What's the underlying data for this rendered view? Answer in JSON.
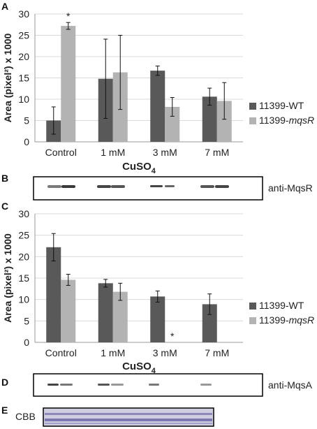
{
  "chart_data": [
    {
      "panel": "A",
      "type": "bar",
      "categories": [
        "Control",
        "1 mM",
        "3 mM",
        "7 mM"
      ],
      "series": [
        {
          "name": "11399-WT",
          "values": [
            5,
            14.8,
            16.7,
            10.6
          ],
          "errors": [
            3.2,
            9.3,
            1.1,
            2.0
          ],
          "color": "#595959"
        },
        {
          "name": "11399-",
          "name_suffix": "mqsR",
          "values": [
            27.2,
            16.3,
            8.2,
            9.6
          ],
          "errors": [
            0.8,
            8.7,
            2.2,
            4.3
          ],
          "color": "#b3b3b3"
        }
      ],
      "annotations": [
        {
          "category": 0,
          "series": 1,
          "text": "*"
        }
      ],
      "xlabel_main": "CuSO",
      "xlabel_sub": "4",
      "ylabel": "Area (pixel²) x 1000",
      "ylim": [
        0,
        30
      ],
      "yticks": [
        "0",
        "5",
        "10",
        "15",
        "20",
        "25",
        "30"
      ],
      "grid": true,
      "legend": "right"
    },
    {
      "panel": "C",
      "type": "bar",
      "categories": [
        "Control",
        "1 mM",
        "3 mM",
        "7 mM"
      ],
      "series": [
        {
          "name": "11399-WT",
          "values": [
            22.2,
            13.8,
            10.7,
            8.9
          ],
          "errors": [
            3.2,
            0.9,
            1.3,
            2.4
          ],
          "color": "#595959"
        },
        {
          "name": "11399-",
          "name_suffix": "mqsR",
          "values": [
            14.6,
            11.8,
            0,
            0
          ],
          "errors": [
            1.3,
            2.0,
            0,
            0
          ],
          "color": "#b3b3b3"
        }
      ],
      "annotations": [
        {
          "category": 2,
          "series": 1,
          "text": "*"
        }
      ],
      "xlabel_main": "CuSO",
      "xlabel_sub": "4",
      "ylabel": "Area (pixel²) x 1000",
      "ylim": [
        0,
        30
      ],
      "yticks": [
        "0",
        "5",
        "10",
        "15",
        "20",
        "25",
        "30"
      ],
      "grid": true,
      "legend": "right"
    }
  ],
  "panels": {
    "a": "A",
    "b": "B",
    "c": "C",
    "d": "D",
    "e": "E"
  },
  "blots": {
    "b_label": "anti-MqsR",
    "d_label": "anti-MqsA",
    "e_label": "CBB"
  }
}
